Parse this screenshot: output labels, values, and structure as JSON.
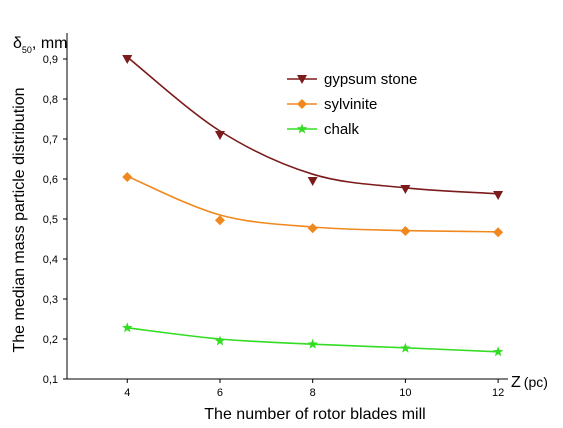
{
  "chart_data": {
    "type": "line",
    "ylabel": "The median mass particle distribution",
    "ylabel_top": {
      "symbol": "δ",
      "subscript": "50",
      "unit": ", mm"
    },
    "xlabel": "The number of rotor blades mill",
    "xlabel_axis_end": {
      "symbol": "Z",
      "unit": "(pc)"
    },
    "x": [
      4,
      6,
      8,
      10,
      12
    ],
    "x_ticks": [
      "4",
      "6",
      "8",
      "10",
      "12"
    ],
    "xlim": [
      2.7,
      13.4
    ],
    "y_ticks": [
      "0,1",
      "0,2",
      "0,3",
      "0,4",
      "0,5",
      "0,6",
      "0,7",
      "0,8",
      "0,9"
    ],
    "ylim": [
      0.1,
      0.97
    ],
    "grid": false,
    "legend_position": "top-right",
    "series": [
      {
        "name": "gypsum stone",
        "marker": "triangle-down",
        "color": "#7b1b1b",
        "values": [
          0.9,
          0.71,
          0.595,
          0.575,
          0.56
        ],
        "fit": [
          0.905,
          0.72,
          0.612,
          0.578,
          0.563
        ]
      },
      {
        "name": "sylvinite",
        "marker": "diamond",
        "color": "#f0881e",
        "values": [
          0.605,
          0.497,
          0.477,
          0.47,
          0.467
        ],
        "fit": [
          0.607,
          0.51,
          0.48,
          0.471,
          0.468
        ]
      },
      {
        "name": "chalk",
        "marker": "star",
        "color": "#33dd22",
        "values": [
          0.228,
          0.195,
          0.187,
          0.177,
          0.168
        ],
        "fit": [
          0.228,
          0.2,
          0.187,
          0.178,
          0.168
        ]
      }
    ]
  }
}
